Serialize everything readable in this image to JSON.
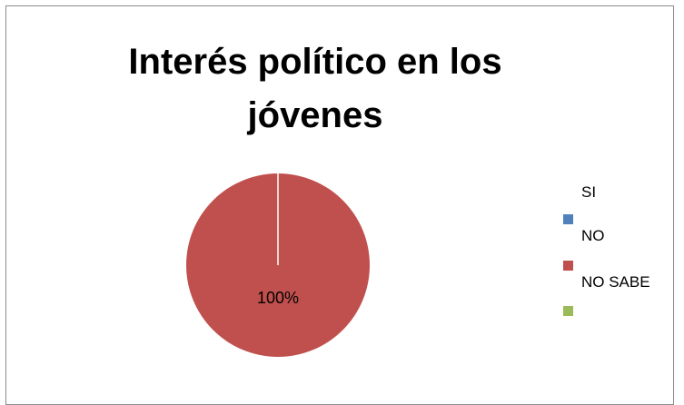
{
  "chart_data": {
    "type": "pie",
    "title_lines": [
      "Interés político en los",
      "jóvenes"
    ],
    "categories": [
      "SI",
      "NO",
      "NO SABE"
    ],
    "values": [
      0,
      100,
      0
    ],
    "data_labels": [
      "",
      "100%",
      ""
    ],
    "colors": [
      "#4f81bd",
      "#c0504d",
      "#9bbb59"
    ],
    "legend_position": "right"
  }
}
